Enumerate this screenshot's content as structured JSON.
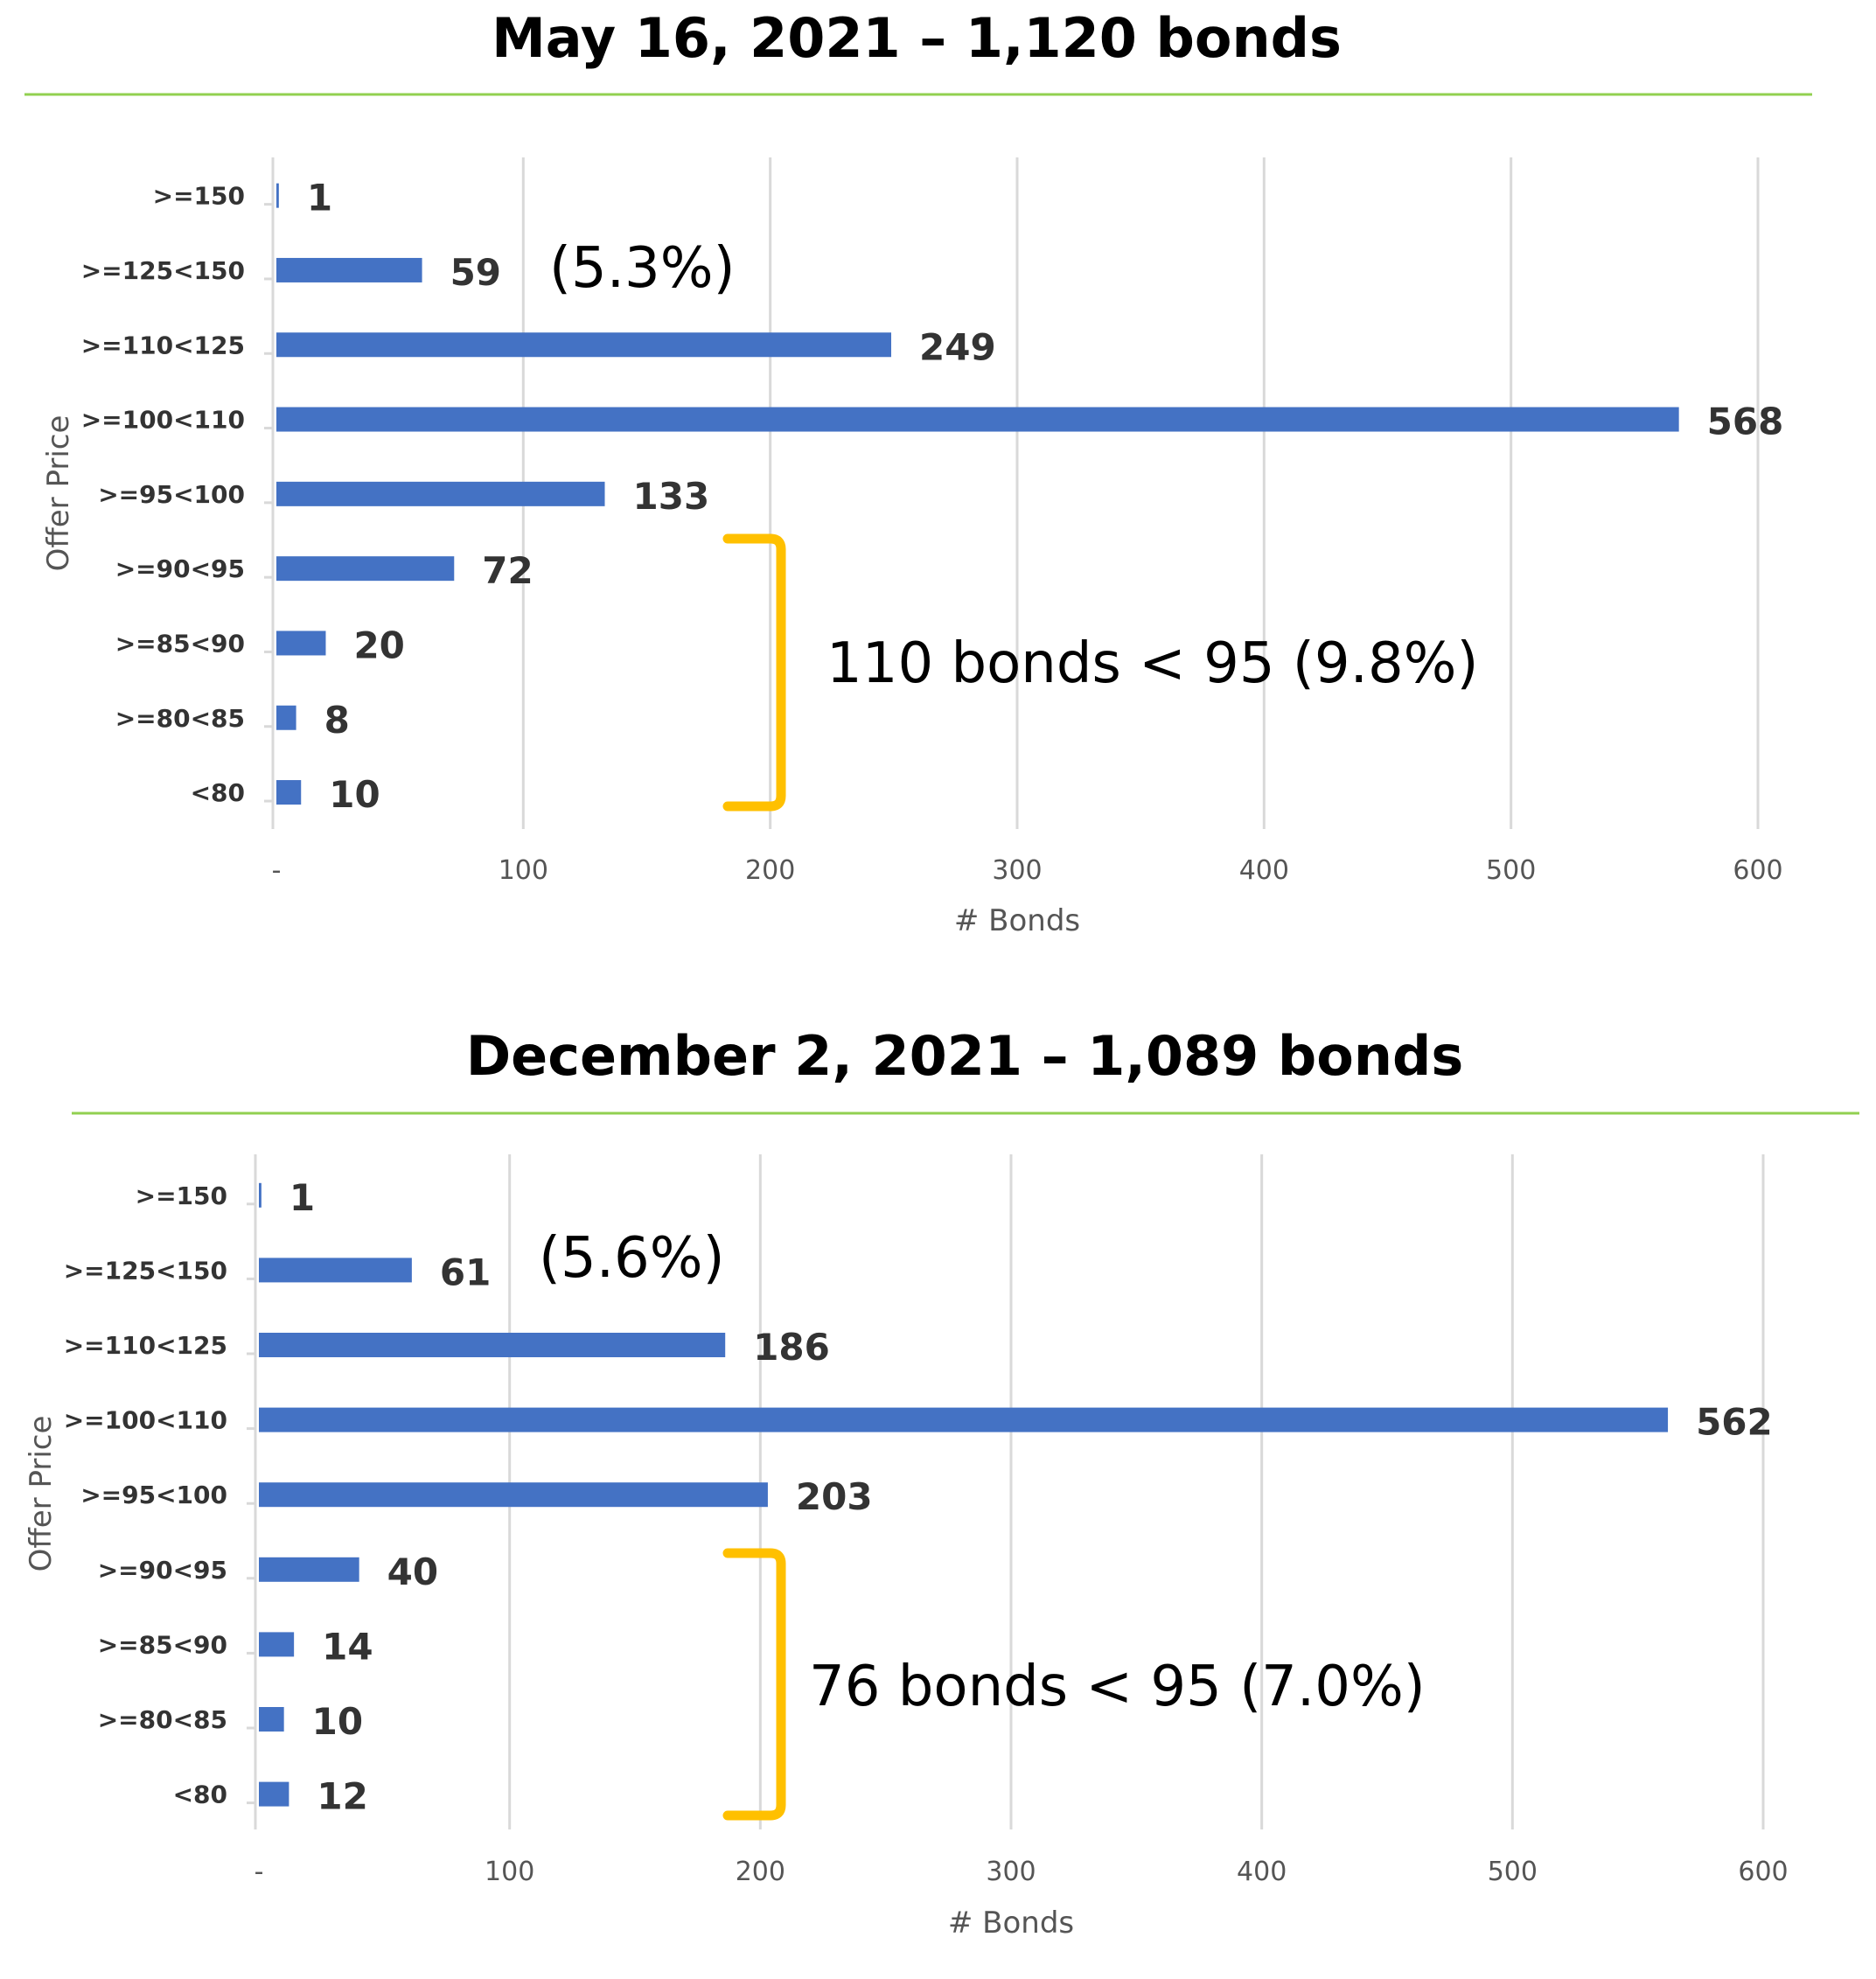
{
  "chart_data": [
    {
      "type": "bar",
      "orientation": "horizontal",
      "title": "May 16, 2021 – 1,120 bonds",
      "xlabel": "# Bonds",
      "ylabel": "Offer Price",
      "xlim": [
        0,
        600
      ],
      "x_ticks": [
        "-",
        "100",
        "200",
        "300",
        "400",
        "500",
        "600"
      ],
      "grid": true,
      "categories": [
        ">=150",
        ">=125<150",
        ">=110<125",
        ">=100<110",
        ">=95<100",
        ">=90<95",
        ">=85<90",
        ">=80<85",
        "<80"
      ],
      "values": [
        1,
        59,
        249,
        568,
        133,
        72,
        20,
        8,
        10
      ],
      "annotations": {
        "high_note": "(5.3%)",
        "low_note": "110 bonds < 95 (9.8%)"
      },
      "colors": {
        "bar": "#4472C4",
        "bracket": "#FFC000",
        "rule": "#92D050",
        "grid": "#D9D9D9"
      }
    },
    {
      "type": "bar",
      "orientation": "horizontal",
      "title": "December 2, 2021 – 1,089 bonds",
      "xlabel": "# Bonds",
      "ylabel": "Offer Price",
      "xlim": [
        0,
        600
      ],
      "x_ticks": [
        "-",
        "100",
        "200",
        "300",
        "400",
        "500",
        "600"
      ],
      "grid": true,
      "categories": [
        ">=150",
        ">=125<150",
        ">=110<125",
        ">=100<110",
        ">=95<100",
        ">=90<95",
        ">=85<90",
        ">=80<85",
        "<80"
      ],
      "values": [
        1,
        61,
        186,
        562,
        203,
        40,
        14,
        10,
        12
      ],
      "annotations": {
        "high_note": "(5.6%)",
        "low_note": "76 bonds < 95 (7.0%)"
      },
      "colors": {
        "bar": "#4472C4",
        "bracket": "#FFC000",
        "rule": "#92D050",
        "grid": "#D9D9D9"
      }
    }
  ]
}
